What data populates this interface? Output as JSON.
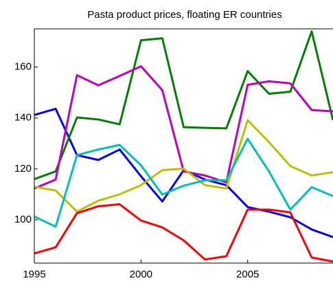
{
  "chart_data": {
    "type": "line",
    "title": "Pasta product prices, floating ER countries",
    "x": [
      1995,
      1996,
      1997,
      1998,
      1999,
      2000,
      2001,
      2002,
      2003,
      2004,
      2005,
      2006,
      2007,
      2008,
      2009
    ],
    "series": [
      {
        "color": "#0000ff",
        "values": [
          141.2,
          143.6,
          125.4,
          123.5,
          127.6,
          117.1,
          107.2,
          119.5,
          115.8,
          113.6,
          105,
          103.2,
          101,
          96.2,
          93.2
        ]
      },
      {
        "color": "#008000",
        "values": [
          116,
          119,
          140.2,
          139.4,
          137.5,
          170.5,
          171.3,
          136.4,
          136.1,
          135.9,
          158.4,
          149.5,
          150.3,
          174,
          139.1
        ]
      },
      {
        "color": "#bf00bf",
        "values": [
          112.3,
          115.8,
          156.8,
          152.8,
          156.5,
          160.3,
          150.9,
          119,
          117.4,
          114.7,
          153,
          154.4,
          153.6,
          143.1,
          142.6
        ]
      },
      {
        "color": "#bfbf00",
        "values": [
          113,
          111.5,
          103.2,
          107.5,
          110,
          113.6,
          119.5,
          120.1,
          113.6,
          112.3,
          139.1,
          130.5,
          121.1,
          117.4,
          118.7
        ]
      },
      {
        "color": "#00bfbf",
        "values": [
          101.3,
          97.3,
          125.4,
          127.6,
          129.4,
          121.4,
          109.9,
          113.4,
          115.5,
          115.5,
          131.8,
          119,
          104,
          112.8,
          109.3
        ]
      },
      {
        "color": "#ff0000",
        "values": [
          86.8,
          89.2,
          102.6,
          105.3,
          106.1,
          99.7,
          97,
          91.9,
          84.4,
          85.7,
          104,
          104,
          102.9,
          85.2,
          83.6
        ]
      }
    ],
    "xlim": [
      1995,
      2009
    ],
    "xticks": [
      1995,
      2000,
      2005
    ],
    "ylim": [
      83,
      175
    ],
    "yticks": [
      100,
      120,
      140,
      160
    ]
  }
}
